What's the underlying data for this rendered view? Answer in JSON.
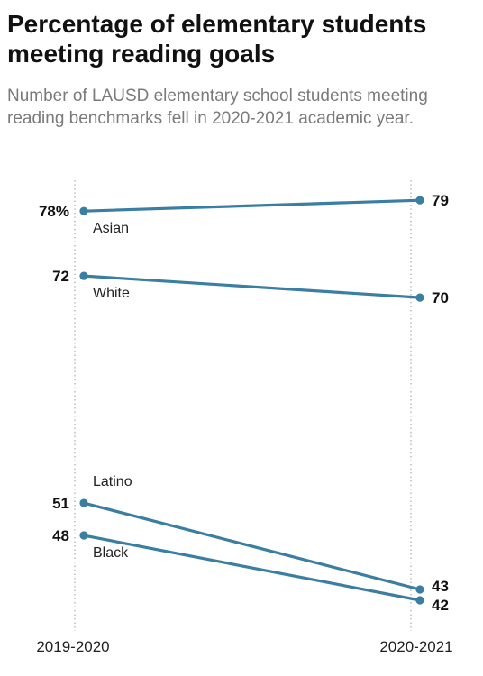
{
  "title": "Percentage of elementary students meeting reading goals",
  "subtitle": "Number of LAUSD elementary school students meeting reading benchmarks fell in 2020-2021 academic year.",
  "colors": {
    "line": "#3a7ea1",
    "guide": "#9a9a9a"
  },
  "chart_data": {
    "type": "line",
    "x": [
      "2019-2020",
      "2020-2021"
    ],
    "series": [
      {
        "name": "Asian",
        "values": [
          78,
          79
        ],
        "start_label": "78%",
        "end_label": "79"
      },
      {
        "name": "White",
        "values": [
          72,
          70
        ],
        "start_label": "72",
        "end_label": "70"
      },
      {
        "name": "Latino",
        "values": [
          51,
          43
        ],
        "start_label": "51",
        "end_label": "43"
      },
      {
        "name": "Black",
        "values": [
          48,
          42
        ],
        "start_label": "48",
        "end_label": "42"
      }
    ],
    "xlabel": "",
    "ylabel": "",
    "grid": false
  }
}
